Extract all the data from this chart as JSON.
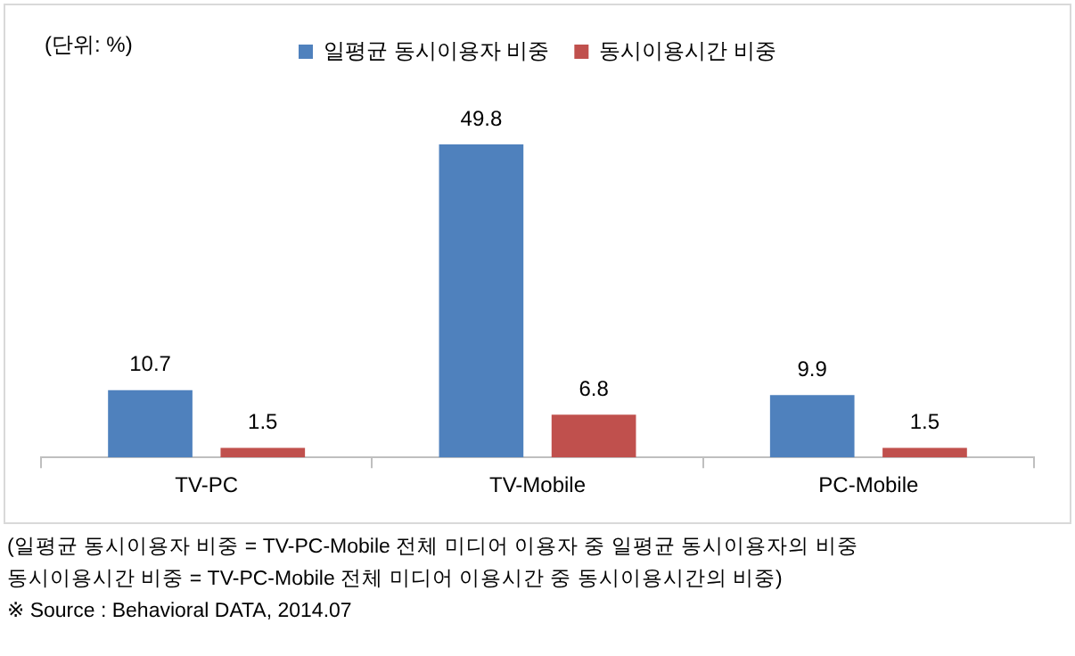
{
  "chart_data": {
    "type": "bar",
    "ylabel": "(단위: %)",
    "categories": [
      "TV-PC",
      "TV-Mobile",
      "PC-Mobile"
    ],
    "series": [
      {
        "name": "일평균 동시이용자 비중",
        "color": "#4f81bd",
        "values": [
          10.7,
          49.8,
          9.9
        ]
      },
      {
        "name": "동시이용시간 비중",
        "color": "#c0504d",
        "values": [
          1.5,
          6.8,
          1.5
        ]
      }
    ],
    "data_labels": true,
    "legend": "top",
    "grid": false,
    "annotations": [
      "(일평균 동시이용자 비중 = TV-PC-Mobile 전체 미디어 이용자 중 일평균 동시이용자의 비중",
      "동시이용시간 비중 = TV-PC-Mobile 전체 미디어 이용시간 중 동시이용시간의 비중)",
      "※ Source : Behavioral DATA, 2014.07"
    ]
  }
}
